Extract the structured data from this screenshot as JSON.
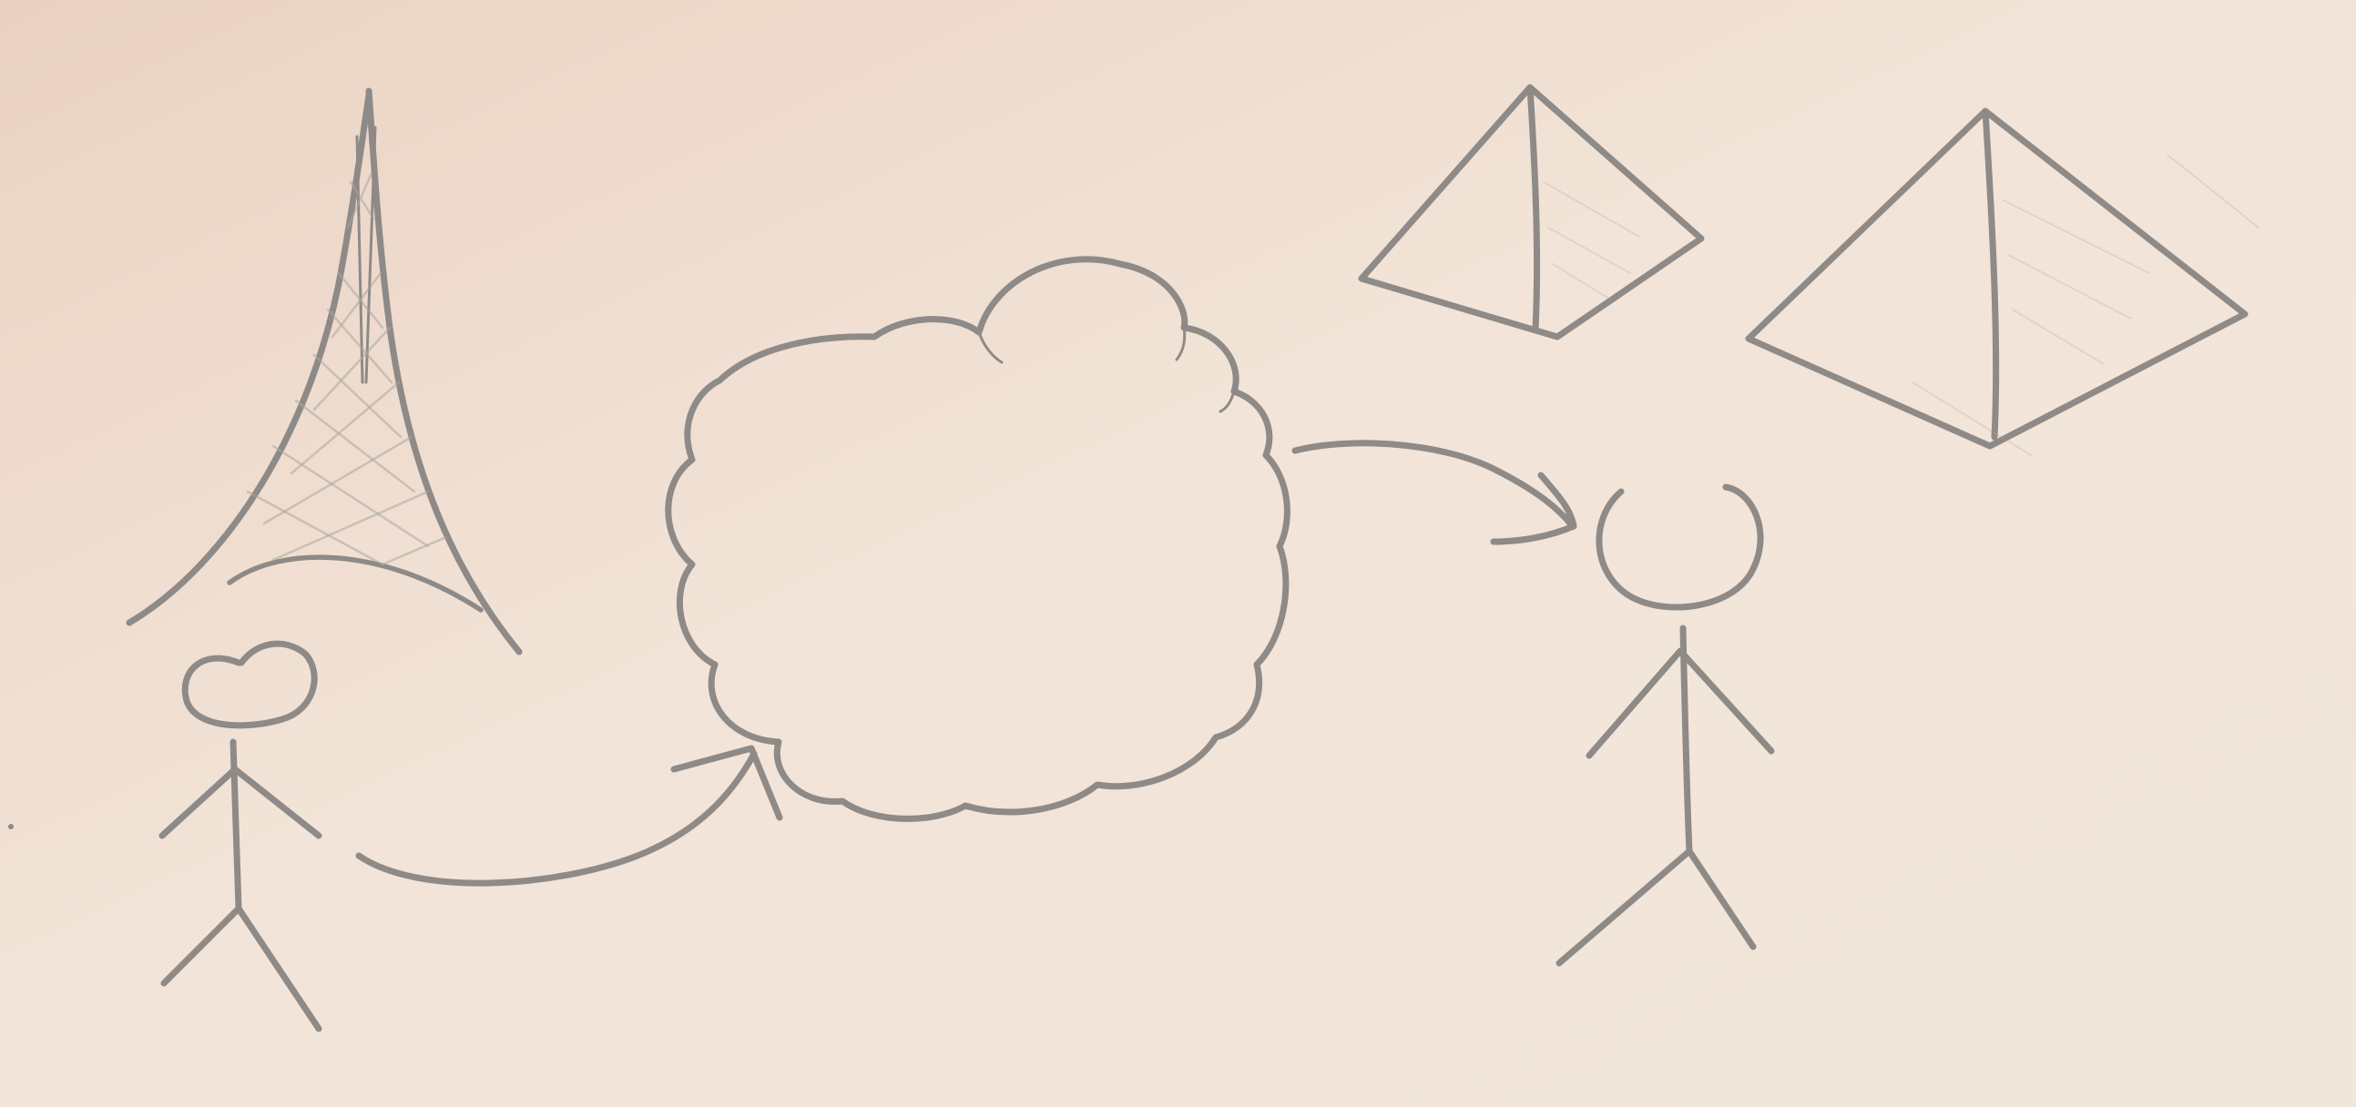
{
  "colors": {
    "paper_top_left": "#ead2c2",
    "paper_mid": "#f2e4d8",
    "paper_bottom_right": "#f1e6da",
    "pencil": "#8e8a87",
    "pencil_light": "#aaa5a1"
  },
  "diagram": {
    "nodes": [
      {
        "id": "eiffel-tower",
        "depicts": "eiffel-tower-icon"
      },
      {
        "id": "person-left",
        "depicts": "stick-figure-icon"
      },
      {
        "id": "cloud",
        "depicts": "cloud-icon"
      },
      {
        "id": "pyramid-small",
        "depicts": "pyramid-icon"
      },
      {
        "id": "pyramid-large",
        "depicts": "pyramid-icon"
      },
      {
        "id": "person-right",
        "depicts": "stick-figure-icon"
      }
    ],
    "edges": [
      {
        "from": "person-left",
        "to": "cloud",
        "style": "curved-arrow"
      },
      {
        "from": "cloud",
        "to": "person-right",
        "style": "curved-arrow"
      }
    ]
  }
}
